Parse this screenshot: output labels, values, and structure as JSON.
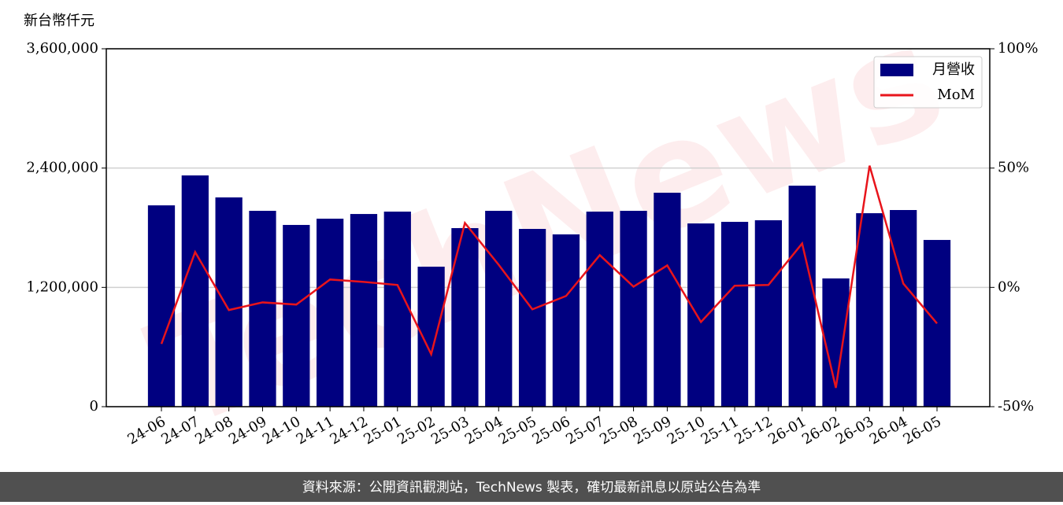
{
  "chart_data": {
    "type": "bar-line",
    "y_label": "新台幣仟元",
    "watermark": "TechNews",
    "footer": "資料來源：公開資訊觀測站，TechNews 製表，確切最新訊息以原站公告為準",
    "categories": [
      "24-06",
      "24-07",
      "24-08",
      "24-09",
      "24-10",
      "24-11",
      "24-12",
      "25-01",
      "25-02",
      "25-03",
      "25-04",
      "25-05",
      "25-06",
      "25-07",
      "25-08",
      "25-09",
      "25-10",
      "25-11",
      "25-12",
      "26-01",
      "26-02",
      "26-03",
      "26-04",
      "26-05"
    ],
    "series": [
      {
        "name": "月營收",
        "type": "bar",
        "color": "#000080",
        "values": [
          2025000,
          2326000,
          2105000,
          1970000,
          1828000,
          1891000,
          1938000,
          1962000,
          1408000,
          1796000,
          1970000,
          1788000,
          1733000,
          1962000,
          1970000,
          2152000,
          1843000,
          1859000,
          1875000,
          2223000,
          1290000,
          1946000,
          1978000,
          1677000
        ]
      },
      {
        "name": "MoM",
        "type": "line",
        "axis": "y2",
        "color": "#e8141b",
        "values": [
          -23.7,
          14.8,
          -9.5,
          -6.3,
          -7.2,
          3.3,
          2.3,
          1.0,
          -28.0,
          27.0,
          9.5,
          -9.2,
          -3.6,
          13.5,
          0.3,
          9.2,
          -14.5,
          0.7,
          1.0,
          18.4,
          -42.1,
          51.0,
          1.6,
          -15.1
        ]
      }
    ],
    "ylim": [
      0,
      3600000
    ],
    "yticks": [
      0,
      {
        "value": 1200000,
        "label": "1,200,000"
      },
      {
        "value": 2400000,
        "label": "2,400,000"
      },
      {
        "value": 3600000,
        "label": "3,600,000"
      }
    ],
    "y2lim": [
      -50,
      100
    ],
    "y2ticks": [
      {
        "value": -50,
        "label": "-50%"
      },
      {
        "value": 0,
        "label": "0%"
      },
      {
        "value": 50,
        "label": "50%"
      },
      {
        "value": 100,
        "label": "100%"
      }
    ],
    "grid": true,
    "legend": "upper right"
  }
}
